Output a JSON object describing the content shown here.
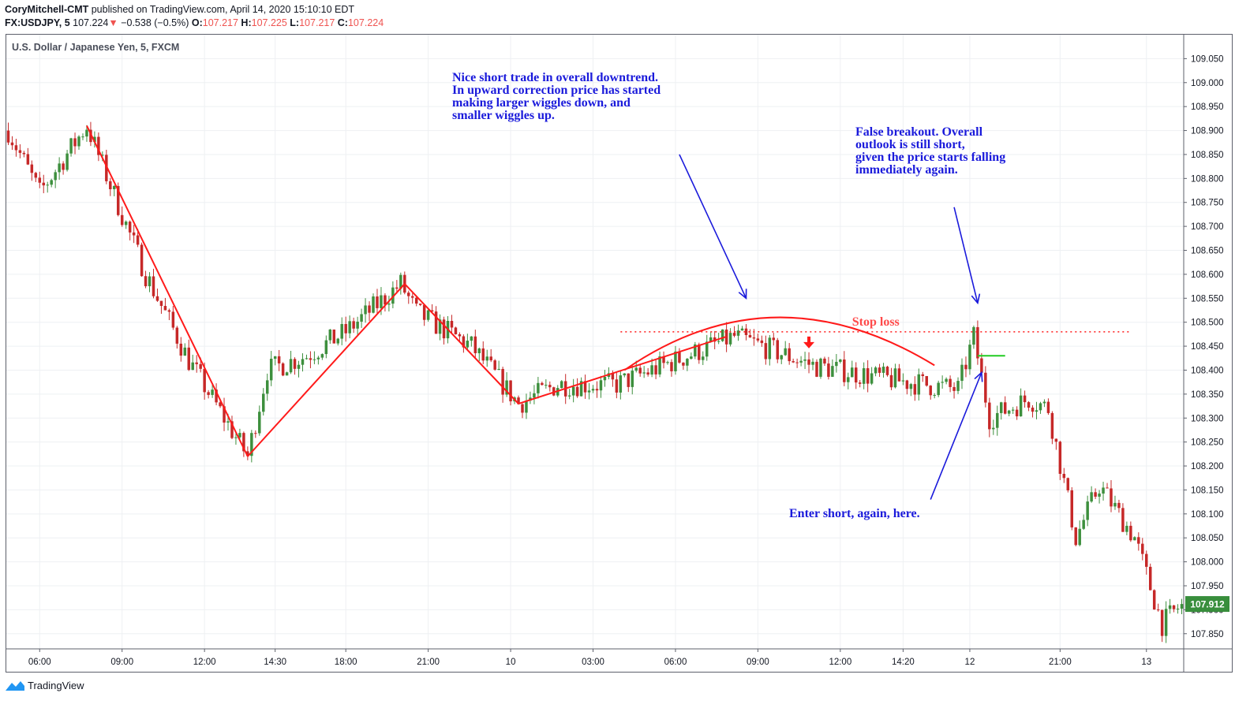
{
  "header": {
    "author": "CoryMitchell-CMT",
    "published": "published on TradingView.com, April 14, 2020 15:10:10 EDT",
    "symbol": "FX:USDJPY, 5",
    "last": "107.224",
    "change_arrow": "▼",
    "change": "−0.538 (−0.5%)",
    "o_label": "O:",
    "o_value": "107.217",
    "h_label": "H:",
    "h_value": "107.225",
    "l_label": "L:",
    "l_value": "107.217",
    "c_label": "C:",
    "c_value": "107.224"
  },
  "footer": {
    "brand": "TradingView",
    "logo_icon": "tradingview-logo-icon"
  },
  "colors": {
    "up": "#3d8f3d",
    "down": "#c62828",
    "annotation_red": "#ff1a1a",
    "annotation_blue": "#1a1adb",
    "price_badge": "#388e3c"
  },
  "chart_data": {
    "type": "candlestick",
    "title": "U.S. Dollar / Japanese Yen, 5, FXCM",
    "ylim": [
      107.82,
      109.1
    ],
    "y_ticks": [
      109.05,
      109.0,
      108.95,
      108.9,
      108.85,
      108.8,
      108.75,
      108.7,
      108.65,
      108.6,
      108.55,
      108.5,
      108.45,
      108.4,
      108.35,
      108.3,
      108.25,
      108.2,
      108.15,
      108.1,
      108.05,
      108.0,
      107.95,
      107.9,
      107.85
    ],
    "x_ticks": [
      {
        "i": 8,
        "label": "06:00"
      },
      {
        "i": 29,
        "label": "09:00"
      },
      {
        "i": 50,
        "label": "12:00"
      },
      {
        "i": 68,
        "label": "14:30"
      },
      {
        "i": 86,
        "label": "18:00"
      },
      {
        "i": 107,
        "label": "21:00"
      },
      {
        "i": 128,
        "label": "10"
      },
      {
        "i": 149,
        "label": "03:00"
      },
      {
        "i": 170,
        "label": "06:00"
      },
      {
        "i": 191,
        "label": "09:00"
      },
      {
        "i": 212,
        "label": "12:00"
      },
      {
        "i": 228,
        "label": "14:20"
      },
      {
        "i": 245,
        "label": "12"
      },
      {
        "i": 268,
        "label": "21:00"
      },
      {
        "i": 290,
        "label": "13"
      }
    ],
    "n_bars": 300,
    "path_points": [
      [
        0,
        108.9
      ],
      [
        8,
        108.77
      ],
      [
        20,
        108.91
      ],
      [
        35,
        108.6
      ],
      [
        46,
        108.42
      ],
      [
        61,
        108.22
      ],
      [
        66,
        108.4
      ],
      [
        76,
        108.43
      ],
      [
        86,
        108.48
      ],
      [
        100,
        108.58
      ],
      [
        104,
        108.52
      ],
      [
        118,
        108.45
      ],
      [
        130,
        108.33
      ],
      [
        140,
        108.37
      ],
      [
        155,
        108.37
      ],
      [
        170,
        108.42
      ],
      [
        185,
        108.47
      ],
      [
        192,
        108.45
      ],
      [
        205,
        108.41
      ],
      [
        225,
        108.38
      ],
      [
        242,
        108.36
      ],
      [
        246,
        108.47
      ],
      [
        250,
        108.3
      ],
      [
        260,
        108.34
      ],
      [
        265,
        108.32
      ],
      [
        272,
        108.05
      ],
      [
        278,
        108.16
      ],
      [
        287,
        108.05
      ],
      [
        294,
        107.87
      ],
      [
        299,
        107.912
      ]
    ],
    "last_price": "107.912",
    "annotations": {
      "note1": [
        "Nice short trade in overall downtrend.",
        "In upward correction price has started",
        "making larger wiggles down, and",
        "smaller wiggles up."
      ],
      "note2": [
        "False breakout. Overall",
        "outlook is still short,",
        "given the price starts falling",
        "immediately again."
      ],
      "note3": "Enter short, again, here.",
      "stop_loss": "Stop loss",
      "stop_loss_price": 108.48,
      "zigzag": [
        [
          20,
          108.91
        ],
        [
          61,
          108.22
        ],
        [
          101,
          108.58
        ],
        [
          130,
          108.33
        ],
        [
          183,
          108.47
        ]
      ],
      "arc": {
        "from": [
          157,
          108.4
        ],
        "peak": [
          195,
          108.51
        ],
        "to": [
          236,
          108.41
        ]
      }
    }
  }
}
